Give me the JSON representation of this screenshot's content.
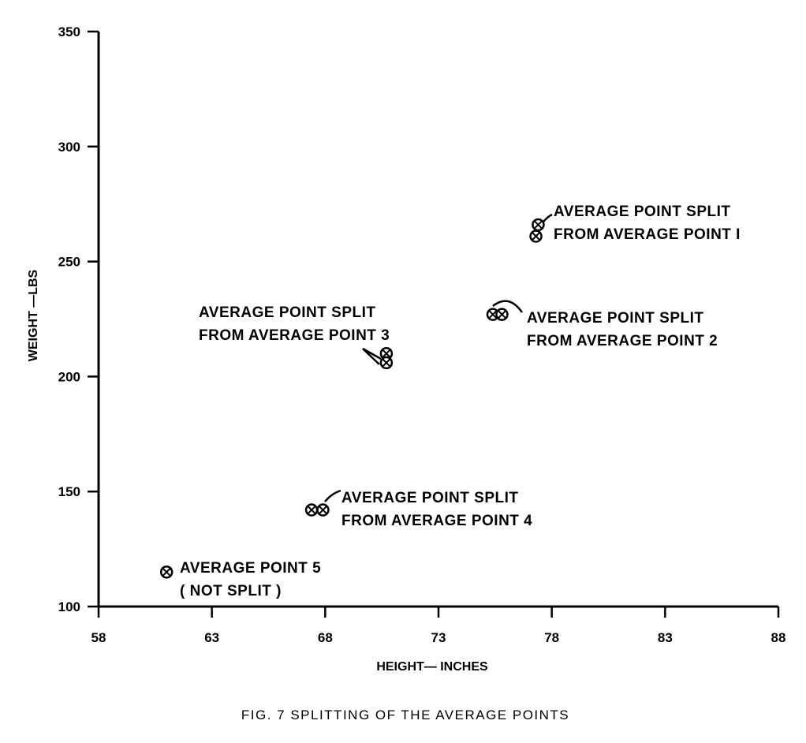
{
  "chart_data": {
    "type": "scatter",
    "title": "",
    "caption": "FIG. 7  SPLITTING OF THE AVERAGE POINTS",
    "xlabel": "HEIGHT— INCHES",
    "ylabel": "WEIGHT —LBS",
    "xlim": [
      58,
      88
    ],
    "ylim": [
      100,
      350
    ],
    "xticks": [
      58,
      63,
      68,
      73,
      78,
      83,
      88
    ],
    "yticks": [
      100,
      150,
      200,
      250,
      300,
      350
    ],
    "grid": false,
    "points": [
      {
        "x": 77.4,
        "y": 266,
        "group": 1
      },
      {
        "x": 77.3,
        "y": 261,
        "group": 1
      },
      {
        "x": 75.4,
        "y": 227,
        "group": 2
      },
      {
        "x": 75.8,
        "y": 227,
        "group": 2
      },
      {
        "x": 70.7,
        "y": 210,
        "group": 3
      },
      {
        "x": 70.7,
        "y": 206,
        "group": 3
      },
      {
        "x": 67.4,
        "y": 142,
        "group": 4
      },
      {
        "x": 67.9,
        "y": 142,
        "group": 4
      },
      {
        "x": 61.0,
        "y": 115,
        "group": 5
      }
    ],
    "annotations": [
      {
        "lines": [
          "AVERAGE POINT  SPLIT",
          "FROM AVERAGE POINT I"
        ]
      },
      {
        "lines": [
          "AVERAGE POINT SPLIT",
          "FROM AVERAGE POINT 2"
        ]
      },
      {
        "lines": [
          "AVERAGE POINT SPLIT",
          "FROM AVERAGE POINT  3"
        ]
      },
      {
        "lines": [
          "AVERAGE POINT SPLIT",
          "FROM AVERAGE POINT 4"
        ]
      },
      {
        "lines": [
          "AVERAGE POINT 5",
          "( NOT SPLIT )"
        ]
      }
    ]
  }
}
